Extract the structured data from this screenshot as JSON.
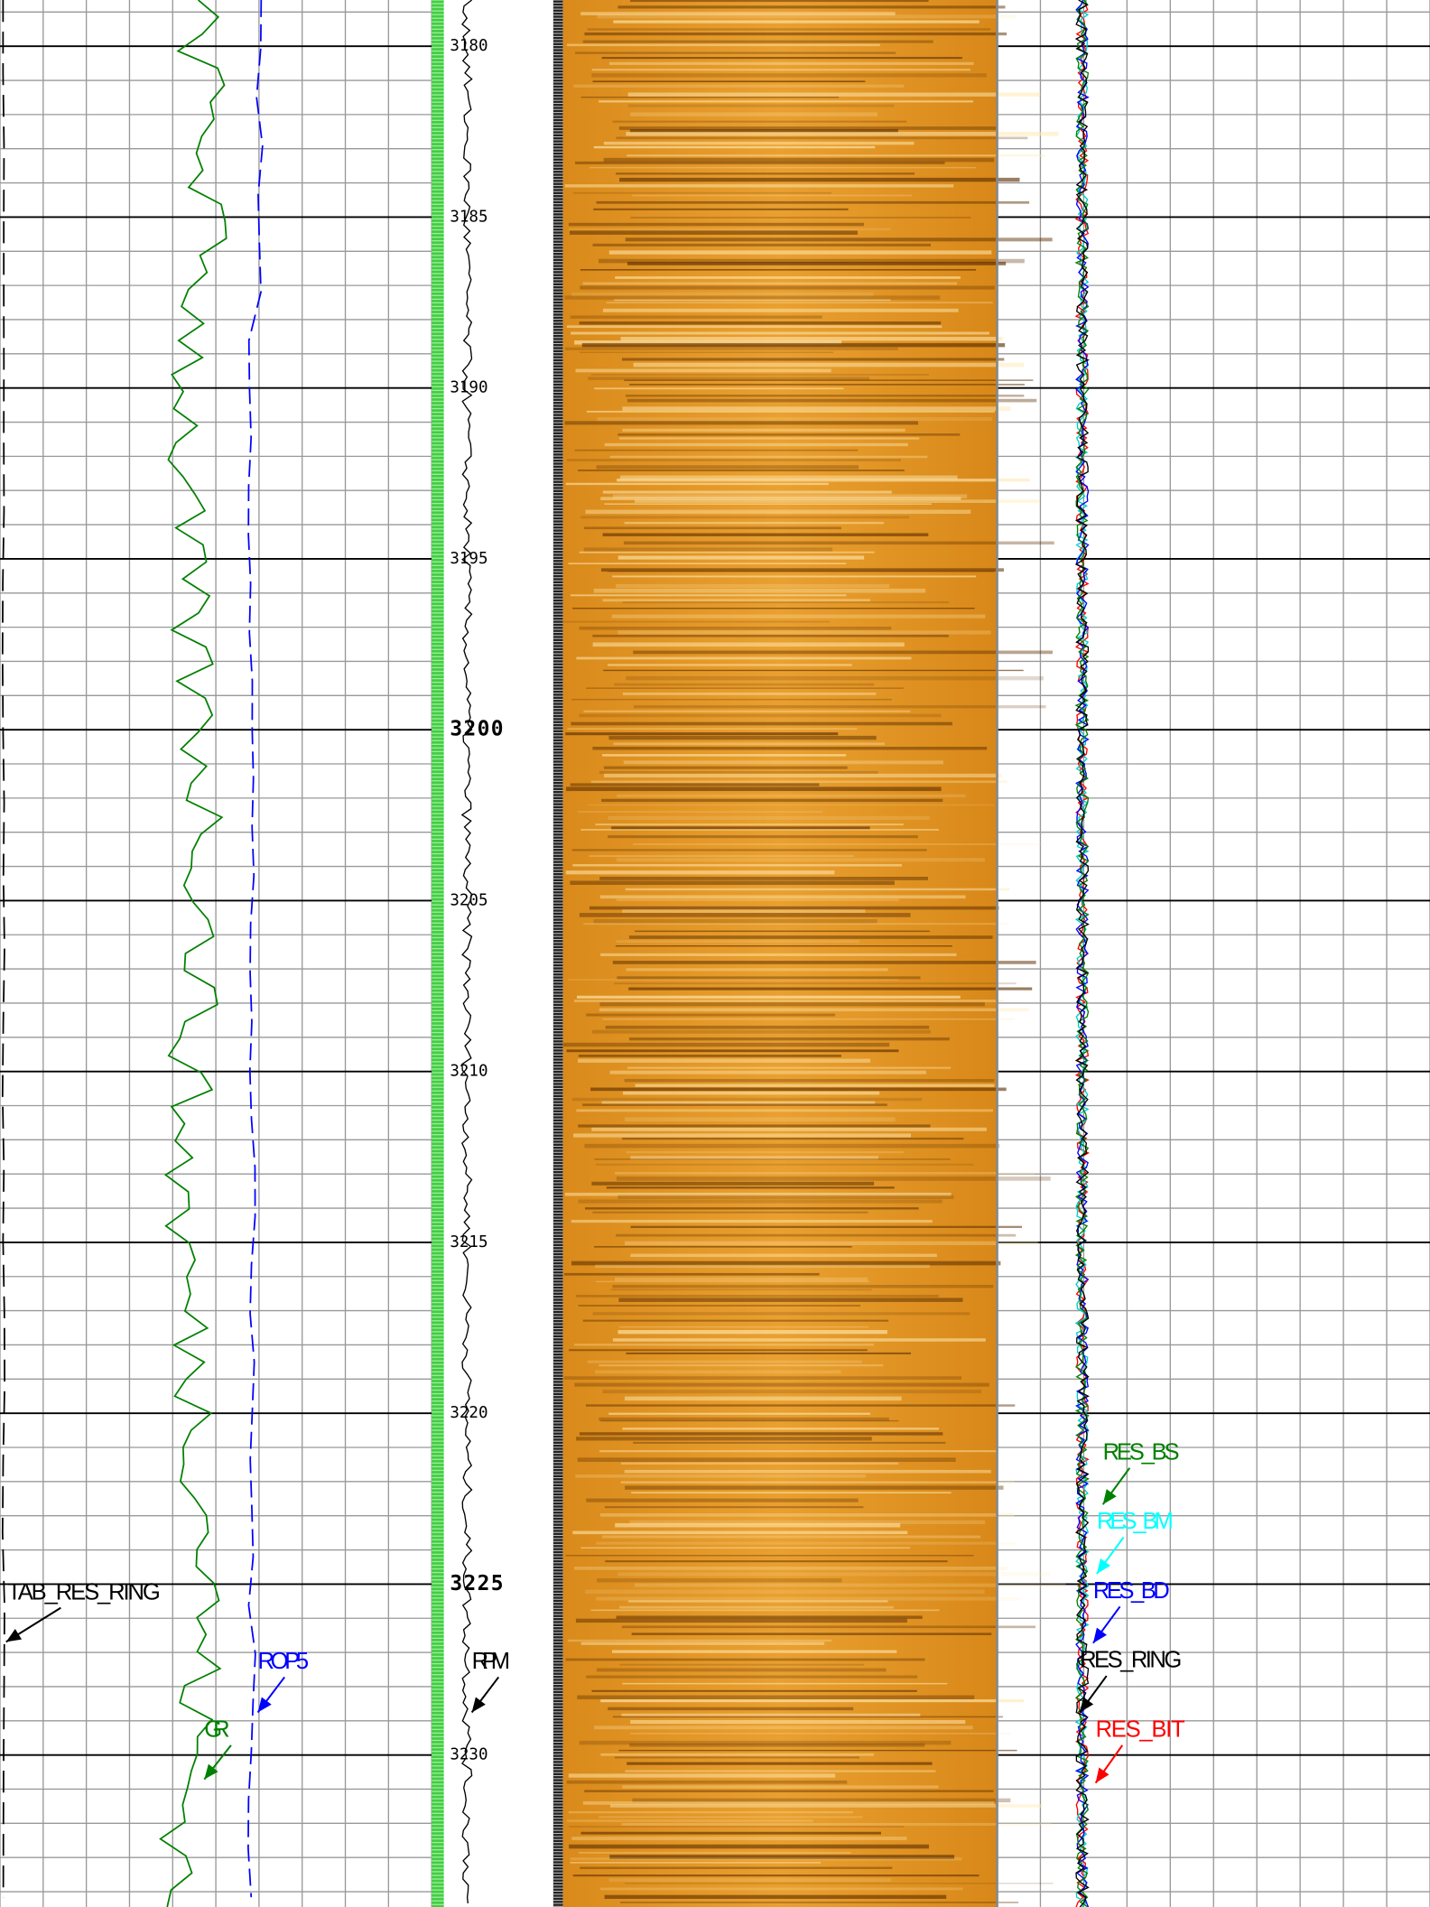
{
  "depth_track": {
    "labels": [
      3180,
      3185,
      3190,
      3195,
      3200,
      3205,
      3210,
      3215,
      3220,
      3225,
      3230
    ],
    "major": [
      3200,
      3225
    ]
  },
  "curve_labels": [
    {
      "text": "TAB_RES_RING",
      "color": "#000000"
    },
    {
      "text": "ROP5",
      "color": "#0000ff"
    },
    {
      "text": "GR",
      "color": "#008000"
    },
    {
      "text": "RPM",
      "color": "#000000"
    },
    {
      "text": "RES_BS",
      "color": "#008000"
    },
    {
      "text": "RES_BM",
      "color": "#00ffff"
    },
    {
      "text": "RES_BD",
      "color": "#0000ff"
    },
    {
      "text": "RES_RING",
      "color": "#000000"
    },
    {
      "text": "RES_BIT",
      "color": "#ff0000"
    }
  ]
}
